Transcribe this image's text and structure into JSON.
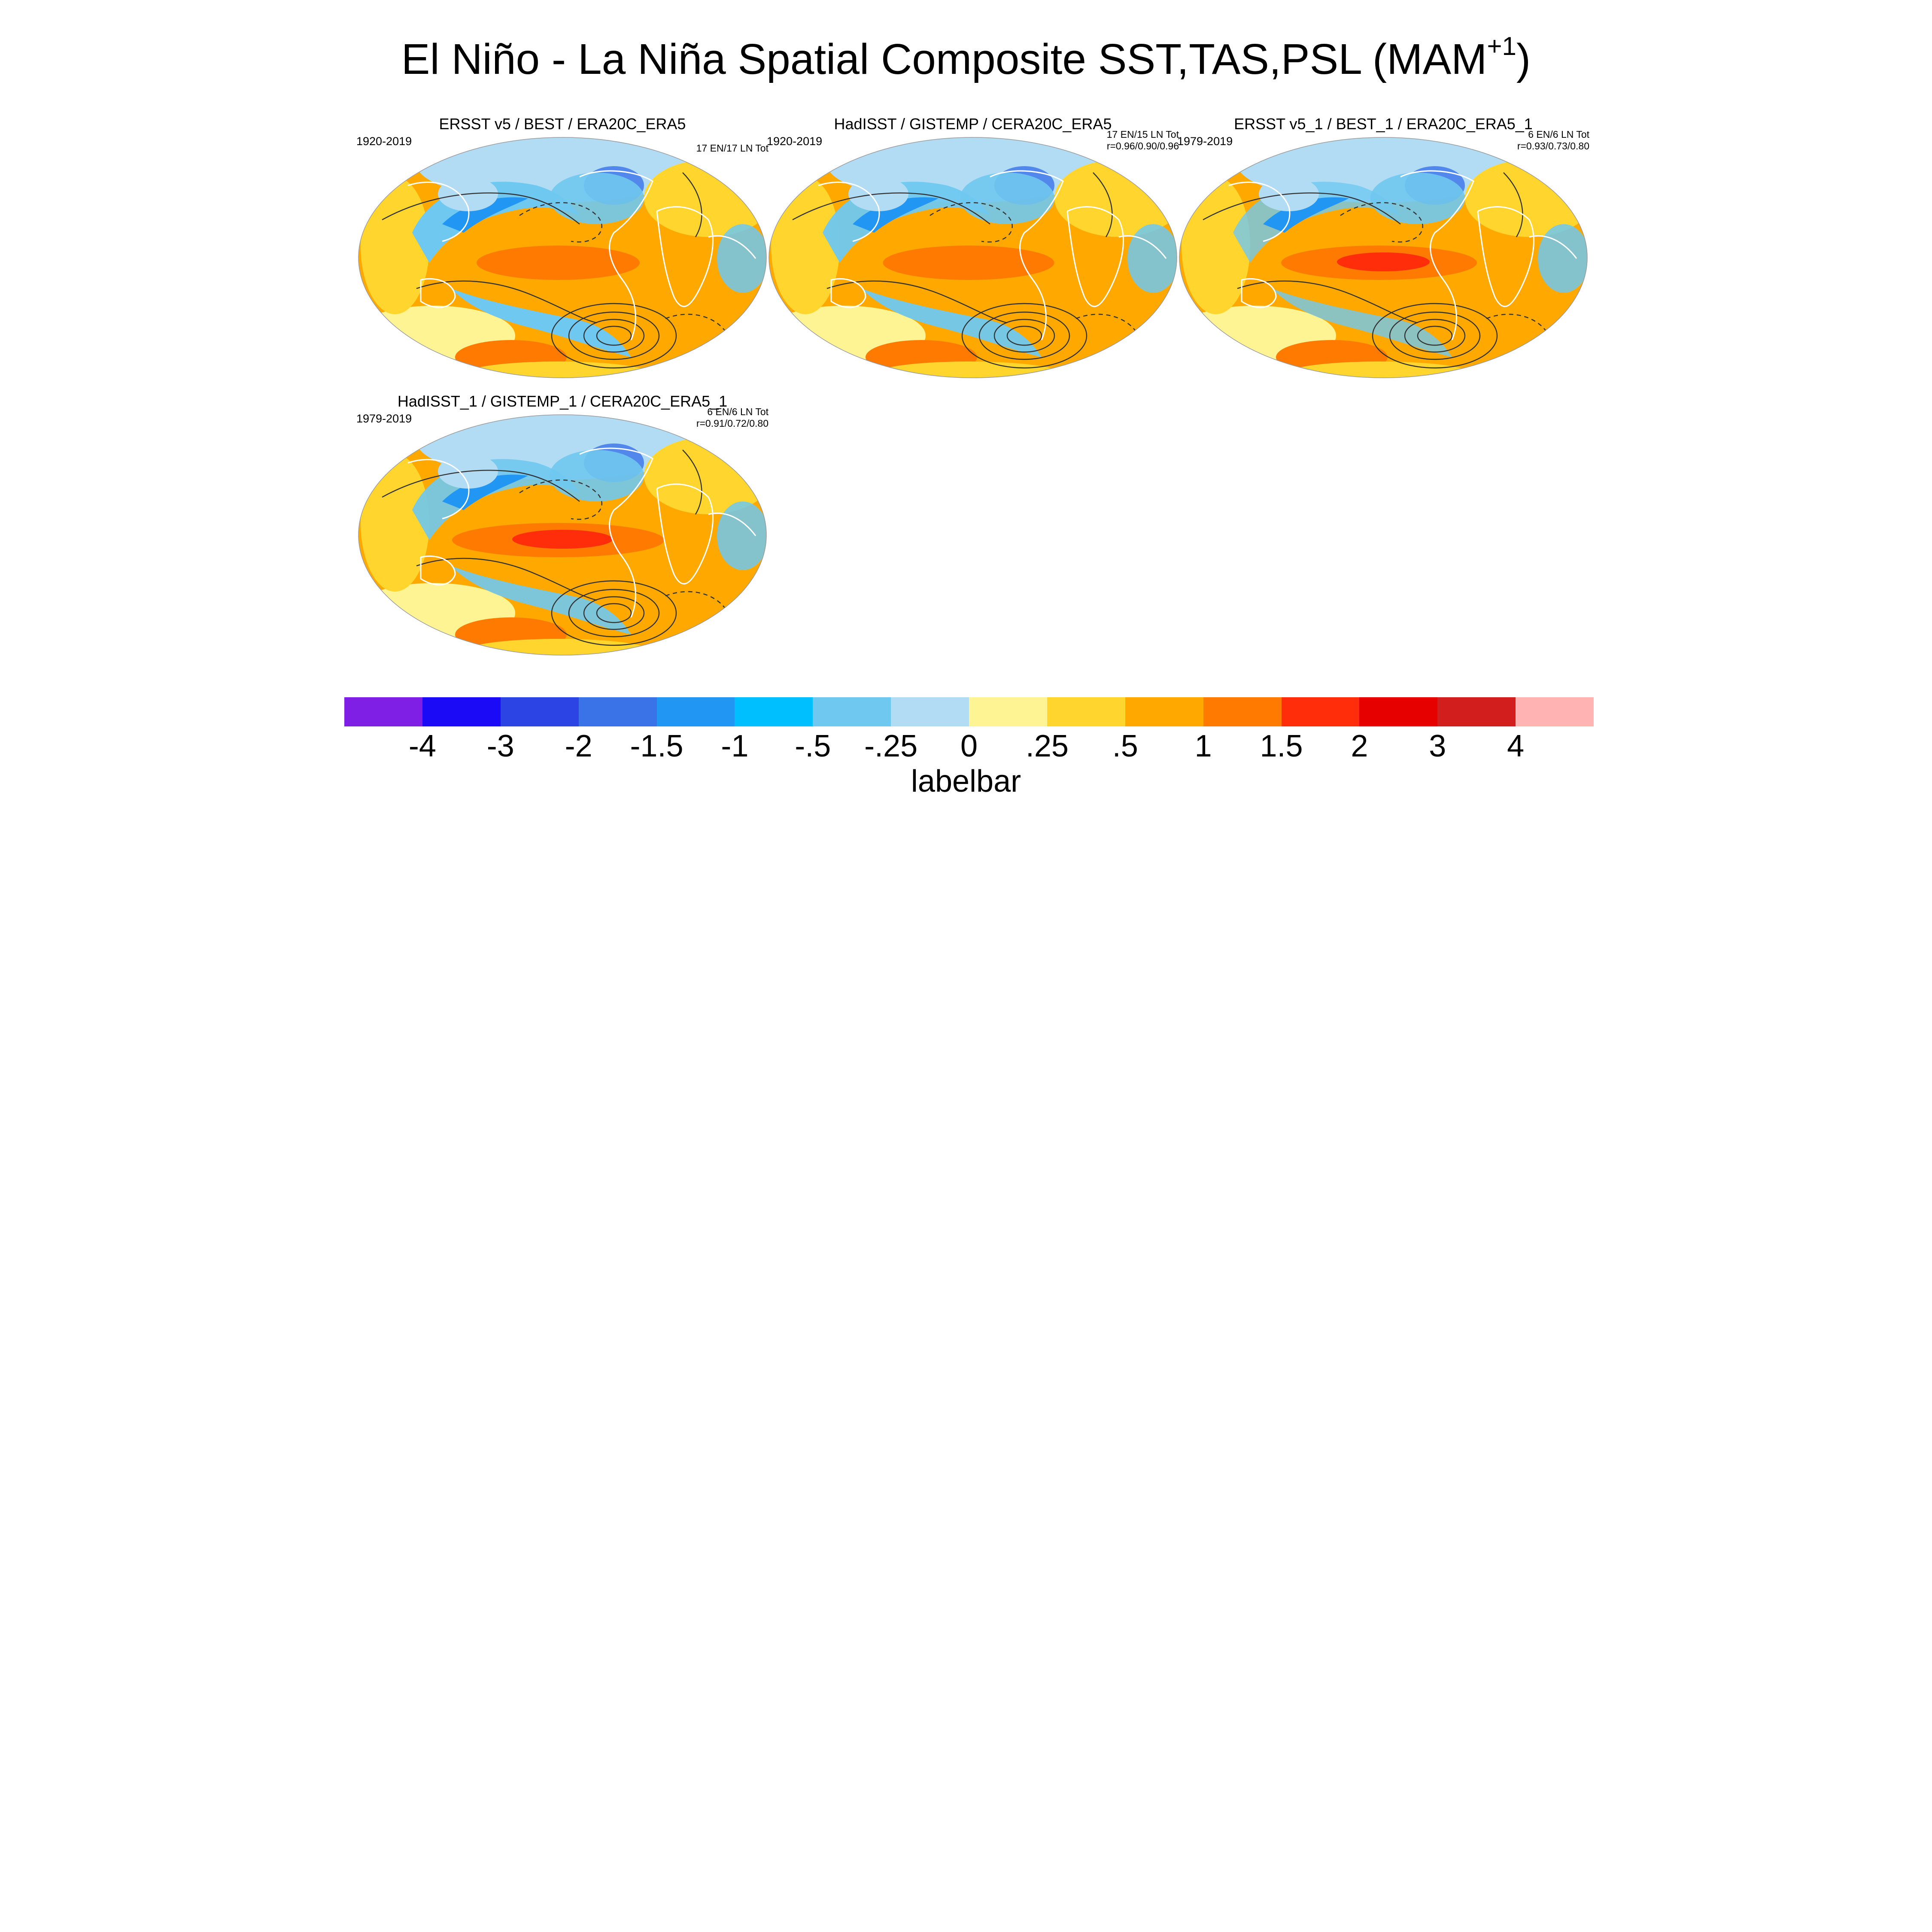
{
  "figure": {
    "title_main": "El Niño - La Niña Spatial Composite SST,TAS,PSL (MAM",
    "title_superscript": "+1",
    "title_close": ")"
  },
  "panels": [
    {
      "title": "ERSST v5 / BEST / ERA20C_ERA5",
      "period": "1920-2019",
      "counts": "17 EN/17 LN Tot",
      "corr": ""
    },
    {
      "title": "HadISST / GISTEMP / CERA20C_ERA5",
      "period": "1920-2019",
      "counts": "17 EN/15 LN Tot",
      "corr": "r=0.96/0.90/0.96"
    },
    {
      "title": "ERSST v5_1 / BEST_1 / ERA20C_ERA5_1",
      "period": "1979-2019",
      "counts": "6 EN/6 LN Tot",
      "corr": "r=0.93/0.73/0.80"
    },
    {
      "title": "HadISST_1 / GISTEMP_1 / CERA20C_ERA5_1",
      "period": "1979-2019",
      "counts": "6 EN/6 LN Tot",
      "corr": "r=0.91/0.72/0.80"
    }
  ],
  "chart_data": {
    "type": "heatmap",
    "projection": "global map (Robinson-like)",
    "fields": [
      "SST",
      "TAS",
      "PSL contours"
    ],
    "season": "MAM+1",
    "colorbar": {
      "title": "labelbar",
      "ticks": [
        "-4",
        "-3",
        "-2",
        "-1.5",
        "-1",
        "-.5",
        "-.25",
        "0",
        ".25",
        ".5",
        "1",
        "1.5",
        "2",
        "3",
        "4"
      ],
      "colors": [
        "#7f1fe6",
        "#1a0af5",
        "#2b44e3",
        "#3a72e8",
        "#2196f3",
        "#00bfff",
        "#6fc8f0",
        "#b2dcf3",
        "#fff494",
        "#ffd52e",
        "#ffa900",
        "#ff7a00",
        "#ff2d0a",
        "#e60000",
        "#d31e1e",
        "#ffb3b3"
      ]
    },
    "pattern_colors": {
      "background": "#ffa900",
      "warm_light": "#ffd52e",
      "neutral_warm": "#fff494",
      "neutral_cool": "#b2dcf3",
      "cool": "#6fc8f0",
      "cool_strong": "#2196f3",
      "cool_deep": "#3a72e8",
      "warm_strong": "#ff7a00",
      "warm_peak": "#ff2d0a",
      "contour": "#333333",
      "coast": "#ffffff"
    }
  }
}
